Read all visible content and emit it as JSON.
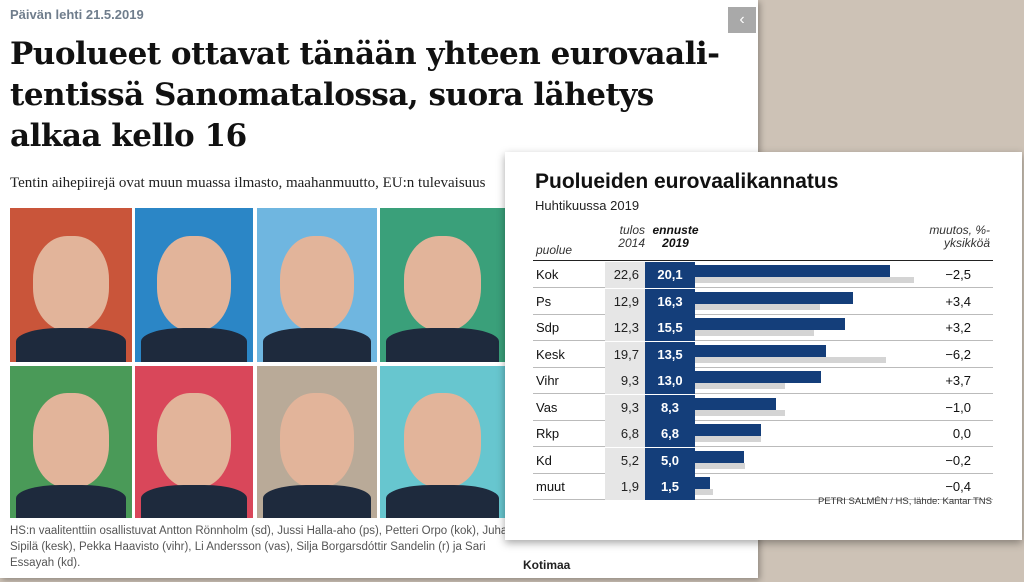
{
  "article": {
    "date": "Päivän lehti 21.5.2019",
    "back_icon": "‹",
    "headline": "Puolueet ottavat tänään yhteen eurovaali-tentissä Sanomatalossa, suora lähetys alkaa kello 16",
    "lede": "Tentin aihepiirejä ovat muun muassa ilmasto, maahanmuutto, EU:n tulevaisuus",
    "caption": "HS:n vaalitenttiin osallistuvat Antton Rönnholm (sd), Jussi Halla-aho (ps), Petteri Orpo (kok), Juha Sipilä (kesk), Pekka Haavisto (vihr), Li Andersson (vas), Silja Borgarsdóttir Sandelin (r) ja Sari Essayah (kd).",
    "section": "Kotimaa",
    "photo_backgrounds": [
      "#c9553a",
      "#2b86c6",
      "#6fb6e0",
      "#3aa07a",
      "#4a9a58",
      "#d9475a",
      "#b9aa98",
      "#67c6cf"
    ]
  },
  "chart": {
    "title": "Puolueiden eurovaalikannatus",
    "subtitle": "Huhtikuussa 2019",
    "col_party": "puolue",
    "col_2014": "tulos 2014",
    "col_2019": "ennuste 2019",
    "col_change": "muutos, %-yksikköä",
    "credit": "PETRI SALMÉN / HS, lähde: Kantar TNS",
    "colors": {
      "forecast": "#143e7a",
      "result": "#d4d4d4"
    }
  },
  "chart_data": {
    "type": "bar",
    "categories": [
      "Kok",
      "Ps",
      "Sdp",
      "Kesk",
      "Vihr",
      "Vas",
      "Rkp",
      "Kd",
      "muut"
    ],
    "series": [
      {
        "name": "tulos 2014",
        "values": [
          22.6,
          12.9,
          12.3,
          19.7,
          9.3,
          9.3,
          6.8,
          5.2,
          1.9
        ]
      },
      {
        "name": "ennuste 2019",
        "values": [
          20.1,
          16.3,
          15.5,
          13.5,
          13.0,
          8.3,
          6.8,
          5.0,
          1.5
        ]
      }
    ],
    "labels_2014": [
      "22,6",
      "12,9",
      "12,3",
      "19,7",
      "9,3",
      "9,3",
      "6,8",
      "5,2",
      "1,9"
    ],
    "labels_2019": [
      "20,1",
      "16,3",
      "15,5",
      "13,5",
      "13,0",
      "8,3",
      "6,8",
      "5,0",
      "1,5"
    ],
    "change": [
      "−2,5",
      "+3,4",
      "+3,2",
      "−6,2",
      "+3,7",
      "−1,0",
      "0,0",
      "−0,2",
      "−0,4"
    ]
  }
}
